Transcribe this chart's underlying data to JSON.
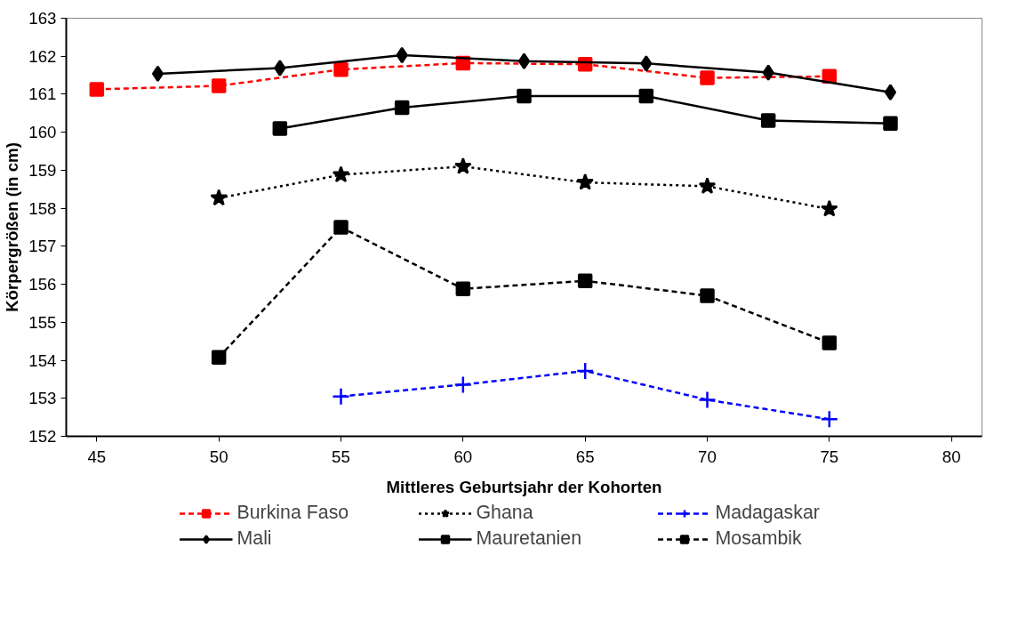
{
  "chart_data": {
    "type": "line",
    "xlabel": "Mittleres Geburtsjahr der Kohorten",
    "ylabel": "Körpergrößen (in cm)",
    "categories": [
      "45",
      null,
      "50",
      null,
      "55",
      null,
      "60",
      null,
      "65",
      null,
      "70",
      null,
      "75",
      null,
      "80"
    ],
    "ylim": [
      152,
      163
    ],
    "yticks": [
      152,
      153,
      154,
      155,
      156,
      157,
      158,
      159,
      160,
      161,
      162,
      163
    ],
    "grid": false,
    "legend": "bottom",
    "series": [
      {
        "name": "Burkina Faso",
        "color": "#ff0000",
        "marker": "square",
        "line_style": "dashed",
        "values": [
          161.13,
          null,
          161.22,
          null,
          161.65,
          null,
          161.82,
          null,
          161.79,
          null,
          161.43,
          null,
          161.47,
          null,
          null
        ]
      },
      {
        "name": "Ghana",
        "color": "#000000",
        "marker": "star",
        "line_style": "dotted",
        "values": [
          null,
          null,
          158.27,
          null,
          158.88,
          null,
          159.1,
          null,
          158.68,
          null,
          158.58,
          null,
          157.98,
          null,
          null
        ]
      },
      {
        "name": "Madagaskar",
        "color": "#0000ff",
        "marker": "cross",
        "line_style": "dashed",
        "values": [
          null,
          null,
          null,
          null,
          153.05,
          null,
          153.36,
          null,
          153.72,
          null,
          152.96,
          null,
          152.45,
          null,
          null
        ]
      },
      {
        "name": "Mali",
        "color": "#000000",
        "marker": "diamond",
        "line_style": "solid",
        "values": [
          null,
          161.54,
          null,
          161.69,
          null,
          162.03,
          null,
          161.87,
          null,
          161.81,
          null,
          161.57,
          null,
          161.05,
          null
        ]
      },
      {
        "name": "Mauretanien",
        "color": "#000000",
        "marker": "square",
        "line_style": "solid",
        "values": [
          null,
          null,
          null,
          160.1,
          null,
          160.65,
          null,
          160.95,
          null,
          160.95,
          null,
          160.31,
          null,
          160.23,
          null
        ]
      },
      {
        "name": "Mosambik",
        "color": "#000000",
        "marker": "square",
        "line_style": "dashed",
        "values": [
          null,
          null,
          154.08,
          null,
          157.5,
          null,
          155.88,
          null,
          156.09,
          null,
          155.7,
          null,
          154.46,
          null,
          null
        ]
      }
    ]
  }
}
